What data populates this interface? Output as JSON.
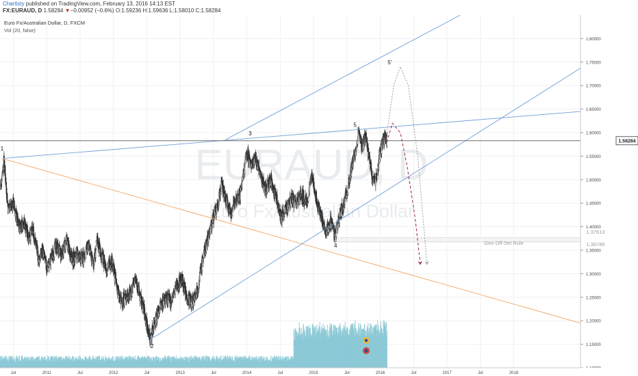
{
  "header": {
    "brand": "Chartisty",
    "published_text": " published on TradingView.com, February 13, 2016 14:13 EST",
    "symbol": "FX:EURAUD, D",
    "last_price": "1.58284",
    "change": "−0.00952 (−0.6%)",
    "o_label": "O:",
    "o_value": "1.59236",
    "h_label": "H:",
    "h_value": "1.59636",
    "l_label": "L:",
    "l_value": "1.58010",
    "c_label": "C:",
    "c_value": "1.58284",
    "down_arrow": "▼"
  },
  "legend": {
    "title": "Euro Fx/Australian Dollar, D, FXCM",
    "volume": "Vol (20, false)"
  },
  "watermark": {
    "symbol": "EURAUD, D",
    "name": "Euro Fx/Australian Dollar"
  },
  "annotations": {
    "geo_rule": "Geo Off-Set Rule",
    "level_upper": "1.37613",
    "level_lower": "1.36785"
  },
  "chart_data": {
    "type": "candlestick",
    "symbol": "EURAUD",
    "interval": "D",
    "x_range": [
      2010.3,
      2019.0
    ],
    "ylim": [
      1.1,
      1.85
    ],
    "y_ticks": [
      "1.10000",
      "1.15000",
      "1.20000",
      "1.25000",
      "1.30000",
      "1.35000",
      "1.40000",
      "1.45000",
      "1.50000",
      "1.55000",
      "1.60000",
      "1.65000",
      "1.70000",
      "1.75000",
      "1.80000"
    ],
    "x_ticks": [
      {
        "t": 2010.5,
        "label": "Jul"
      },
      {
        "t": 2011.0,
        "label": "2011"
      },
      {
        "t": 2011.5,
        "label": "Jul"
      },
      {
        "t": 2012.0,
        "label": "2012"
      },
      {
        "t": 2012.5,
        "label": "Jul"
      },
      {
        "t": 2013.0,
        "label": "2013"
      },
      {
        "t": 2013.5,
        "label": "Jul"
      },
      {
        "t": 2014.0,
        "label": "2014"
      },
      {
        "t": 2014.5,
        "label": "Jul"
      },
      {
        "t": 2015.0,
        "label": "2015"
      },
      {
        "t": 2015.5,
        "label": "Jul"
      },
      {
        "t": 2016.0,
        "label": "2016"
      },
      {
        "t": 2016.5,
        "label": "Jul"
      },
      {
        "t": 2017.0,
        "label": "2017"
      },
      {
        "t": 2017.5,
        "label": "Jul"
      },
      {
        "t": 2018.0,
        "label": "2018"
      }
    ],
    "last_price": 1.58284,
    "last_price_label": "1.58284",
    "price_path": [
      [
        2010.3,
        1.48
      ],
      [
        2010.36,
        1.54
      ],
      [
        2010.42,
        1.44
      ],
      [
        2010.5,
        1.45
      ],
      [
        2010.58,
        1.4
      ],
      [
        2010.66,
        1.41
      ],
      [
        2010.72,
        1.38
      ],
      [
        2010.8,
        1.39
      ],
      [
        2010.88,
        1.33
      ],
      [
        2010.94,
        1.35
      ],
      [
        2011.0,
        1.31
      ],
      [
        2011.06,
        1.33
      ],
      [
        2011.14,
        1.36
      ],
      [
        2011.22,
        1.34
      ],
      [
        2011.3,
        1.37
      ],
      [
        2011.38,
        1.33
      ],
      [
        2011.46,
        1.34
      ],
      [
        2011.54,
        1.33
      ],
      [
        2011.62,
        1.36
      ],
      [
        2011.7,
        1.32
      ],
      [
        2011.76,
        1.37
      ],
      [
        2011.82,
        1.34
      ],
      [
        2011.9,
        1.31
      ],
      [
        2011.97,
        1.33
      ],
      [
        2012.03,
        1.29
      ],
      [
        2012.1,
        1.24
      ],
      [
        2012.18,
        1.25
      ],
      [
        2012.26,
        1.26
      ],
      [
        2012.33,
        1.29
      ],
      [
        2012.4,
        1.25
      ],
      [
        2012.46,
        1.22
      ],
      [
        2012.52,
        1.18
      ],
      [
        2012.55,
        1.16
      ],
      [
        2012.62,
        1.2
      ],
      [
        2012.7,
        1.23
      ],
      [
        2012.78,
        1.25
      ],
      [
        2012.86,
        1.24
      ],
      [
        2012.94,
        1.27
      ],
      [
        2013.02,
        1.29
      ],
      [
        2013.1,
        1.25
      ],
      [
        2013.18,
        1.24
      ],
      [
        2013.26,
        1.27
      ],
      [
        2013.34,
        1.33
      ],
      [
        2013.42,
        1.38
      ],
      [
        2013.5,
        1.42
      ],
      [
        2013.56,
        1.44
      ],
      [
        2013.62,
        1.49
      ],
      [
        2013.68,
        1.46
      ],
      [
        2013.76,
        1.43
      ],
      [
        2013.84,
        1.46
      ],
      [
        2013.9,
        1.47
      ],
      [
        2013.96,
        1.52
      ],
      [
        2014.0,
        1.56
      ],
      [
        2014.06,
        1.53
      ],
      [
        2014.12,
        1.55
      ],
      [
        2014.2,
        1.51
      ],
      [
        2014.28,
        1.48
      ],
      [
        2014.36,
        1.5
      ],
      [
        2014.44,
        1.46
      ],
      [
        2014.52,
        1.42
      ],
      [
        2014.6,
        1.44
      ],
      [
        2014.66,
        1.46
      ],
      [
        2014.74,
        1.45
      ],
      [
        2014.82,
        1.47
      ],
      [
        2014.9,
        1.45
      ],
      [
        2014.98,
        1.51
      ],
      [
        2015.04,
        1.46
      ],
      [
        2015.1,
        1.43
      ],
      [
        2015.18,
        1.39
      ],
      [
        2015.26,
        1.41
      ],
      [
        2015.32,
        1.38
      ],
      [
        2015.4,
        1.43
      ],
      [
        2015.48,
        1.46
      ],
      [
        2015.56,
        1.52
      ],
      [
        2015.62,
        1.56
      ],
      [
        2015.68,
        1.6
      ],
      [
        2015.72,
        1.57
      ],
      [
        2015.78,
        1.59
      ],
      [
        2015.84,
        1.54
      ],
      [
        2015.9,
        1.49
      ],
      [
        2015.95,
        1.51
      ],
      [
        2016.0,
        1.56
      ],
      [
        2016.06,
        1.59
      ],
      [
        2016.1,
        1.58284
      ]
    ],
    "volume": {
      "base": 2,
      "ratio_note": "approximate relative volume bars"
    },
    "trendlines": [
      {
        "color": "#f4a460",
        "points": [
          [
            2010.33,
            1.545
          ],
          [
            2019.0,
            1.195
          ]
        ]
      },
      {
        "color": "#6f9ed8",
        "points": [
          [
            2010.33,
            1.545
          ],
          [
            2019.0,
            1.645
          ]
        ]
      },
      {
        "color": "#6f9ed8",
        "points": [
          [
            2012.55,
            1.16
          ],
          [
            2019.0,
            1.737
          ]
        ]
      },
      {
        "color": "#6f9ed8",
        "points": [
          [
            2013.68,
            1.585
          ],
          [
            2017.2,
            1.85
          ]
        ]
      },
      {
        "color": "#555555",
        "points": [
          [
            2010.3,
            1.58284
          ],
          [
            2019.0,
            1.58284
          ]
        ]
      }
    ],
    "wave_labels": [
      {
        "t": 2010.33,
        "v": 1.562,
        "text": "1"
      },
      {
        "t": 2012.58,
        "v": 1.142,
        "text": "2"
      },
      {
        "t": 2014.05,
        "v": 1.594,
        "text": "3"
      },
      {
        "t": 2015.33,
        "v": 1.356,
        "text": "4"
      },
      {
        "t": 2015.62,
        "v": 1.612,
        "text": "5"
      },
      {
        "t": 2016.14,
        "v": 1.745,
        "text": "5'"
      }
    ],
    "projections": [
      {
        "color": "#999999",
        "dash": "2,2",
        "points": [
          [
            2016.1,
            1.6
          ],
          [
            2016.2,
            1.7
          ],
          [
            2016.3,
            1.74
          ],
          [
            2016.42,
            1.7
          ],
          [
            2016.56,
            1.55
          ],
          [
            2016.7,
            1.32
          ]
        ]
      },
      {
        "color": "#9b2335",
        "dash": "4,3",
        "points": [
          [
            2016.1,
            1.58
          ],
          [
            2016.18,
            1.62
          ],
          [
            2016.3,
            1.6
          ],
          [
            2016.4,
            1.53
          ],
          [
            2016.52,
            1.42
          ],
          [
            2016.6,
            1.32
          ]
        ]
      }
    ],
    "rule_levels": [
      1.37613,
      1.36785
    ]
  }
}
